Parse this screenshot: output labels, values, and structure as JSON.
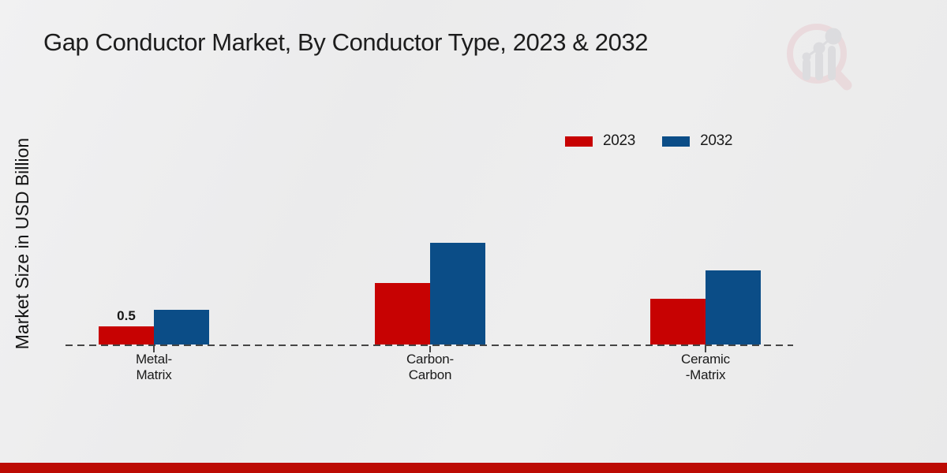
{
  "page": {
    "title": "Gap Conductor Market, By Conductor Type, 2023 & 2032",
    "background_color": "#ebebec",
    "footer_bar_color": "#bc0b04",
    "watermark_icon": "magnifier-bar-chart-logo"
  },
  "chart_data": {
    "type": "bar",
    "title": "Gap Conductor Market, By Conductor Type, 2023 & 2032",
    "xlabel": "",
    "ylabel": "Market Size in USD Billion",
    "categories": [
      "Metal-Matrix",
      "Carbon-Carbon",
      "Ceramic-Matrix"
    ],
    "category_label_lines": [
      [
        "Metal-",
        "Matrix"
      ],
      [
        "Carbon-",
        "Carbon"
      ],
      [
        "Ceramic",
        "-Matrix"
      ]
    ],
    "series": [
      {
        "name": "2023",
        "color": "#c70202",
        "values": [
          0.5,
          1.7,
          1.25
        ]
      },
      {
        "name": "2032",
        "color": "#0b4d87",
        "values": [
          0.95,
          2.8,
          2.05
        ]
      }
    ],
    "data_labels": [
      {
        "series": "2023",
        "category_index": 0,
        "text": "0.5"
      }
    ],
    "ylim": [
      0,
      3.2
    ],
    "grid": false,
    "y_axis_ticks_visible": false,
    "baseline_style": "dashed",
    "legend_position": "top-right"
  }
}
